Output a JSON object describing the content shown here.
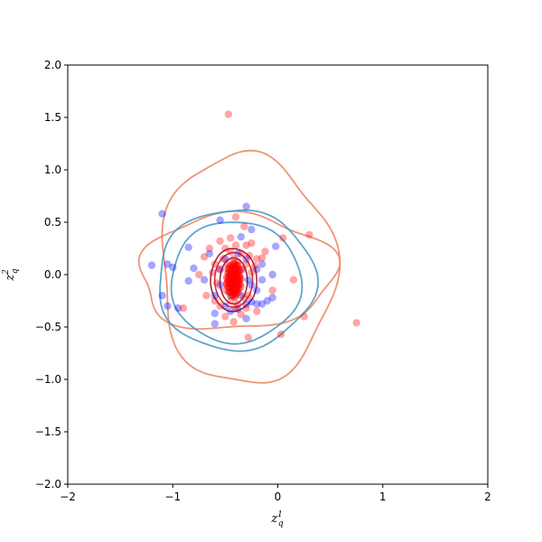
{
  "chart_data": {
    "type": "scatter",
    "title": "",
    "xlabel": {
      "base": "z",
      "sub": "q",
      "sup": "1"
    },
    "ylabel": {
      "base": "z",
      "sub": "q",
      "sup": "2"
    },
    "xlim": [
      -2,
      2
    ],
    "ylim": [
      -2,
      2
    ],
    "xticks": [
      "−2",
      "−1",
      "0",
      "1",
      "2"
    ],
    "yticks": [
      "−2.0",
      "−1.5",
      "−1.0",
      "−0.5",
      "0.0",
      "0.5",
      "1.0",
      "1.5",
      "2.0"
    ],
    "xtick_values": [
      -2,
      -1,
      0,
      1,
      2
    ],
    "ytick_values": [
      -2.0,
      -1.5,
      -1.0,
      -0.5,
      0.0,
      0.5,
      1.0,
      1.5,
      2.0
    ],
    "grid": false,
    "colors": {
      "blue_points": "#0000ff",
      "red_points": "#ff0000",
      "salmon_contour": "#ee8866",
      "steel_contour": "#4e9bc8",
      "dark_red_contour": "#8b0a1e",
      "bright_red_contour": "#dd1111"
    },
    "series": [
      {
        "marker": "circle",
        "color": "#0000ff",
        "alpha": 0.35,
        "points": [
          [
            -1.1,
            0.58
          ],
          [
            -1.2,
            0.09
          ],
          [
            -1.05,
            0.1
          ],
          [
            -1.0,
            0.07
          ],
          [
            -0.85,
            0.26
          ],
          [
            -0.8,
            0.06
          ],
          [
            -0.85,
            -0.06
          ],
          [
            -1.1,
            -0.2
          ],
          [
            -1.05,
            -0.3
          ],
          [
            -0.95,
            -0.32
          ],
          [
            -0.6,
            -0.47
          ],
          [
            -0.6,
            -0.37
          ],
          [
            -0.55,
            0.52
          ],
          [
            -0.3,
            0.65
          ],
          [
            -0.25,
            0.43
          ],
          [
            -0.35,
            0.36
          ],
          [
            -0.02,
            0.27
          ],
          [
            -0.55,
            0.05
          ],
          [
            -0.7,
            -0.05
          ],
          [
            -0.5,
            -0.3
          ],
          [
            -0.45,
            -0.35
          ],
          [
            -0.38,
            -0.33
          ],
          [
            -0.3,
            -0.42
          ],
          [
            -0.3,
            -0.28
          ],
          [
            -0.25,
            -0.26
          ],
          [
            -0.2,
            -0.28
          ],
          [
            -0.15,
            -0.28
          ],
          [
            -0.1,
            -0.25
          ],
          [
            -0.05,
            -0.22
          ],
          [
            -0.15,
            -0.05
          ],
          [
            -0.2,
            0.05
          ],
          [
            -0.15,
            0.1
          ],
          [
            -0.05,
            0.0
          ],
          [
            -0.65,
            0.2
          ],
          [
            -0.6,
            -0.2
          ],
          [
            -0.35,
            0.05
          ],
          [
            -0.3,
            0.15
          ],
          [
            -0.25,
            -0.1
          ],
          [
            -0.38,
            0.2
          ],
          [
            -0.5,
            0.15
          ],
          [
            -0.45,
            -0.2
          ],
          [
            -0.35,
            -0.2
          ],
          [
            -0.28,
            -0.05
          ],
          [
            -0.2,
            -0.15
          ],
          [
            -0.55,
            -0.1
          ]
        ]
      },
      {
        "marker": "circle",
        "color": "#ff0000",
        "alpha": 0.35,
        "points": [
          [
            -0.47,
            1.53
          ],
          [
            0.75,
            -0.46
          ],
          [
            0.3,
            0.38
          ],
          [
            0.05,
            0.35
          ],
          [
            0.25,
            -0.4
          ],
          [
            0.03,
            -0.57
          ],
          [
            -0.28,
            -0.6
          ],
          [
            -0.9,
            -0.32
          ],
          [
            -0.32,
            0.46
          ],
          [
            -0.4,
            0.55
          ],
          [
            -0.45,
            0.35
          ],
          [
            -0.55,
            0.32
          ],
          [
            -0.65,
            0.25
          ],
          [
            -0.7,
            0.17
          ],
          [
            -0.75,
            0.0
          ],
          [
            -0.68,
            -0.2
          ],
          [
            -0.6,
            -0.25
          ],
          [
            -0.5,
            -0.4
          ],
          [
            -0.42,
            -0.45
          ],
          [
            -0.35,
            -0.38
          ],
          [
            -0.2,
            0.15
          ],
          [
            -0.15,
            0.16
          ],
          [
            -0.05,
            -0.15
          ],
          [
            0.15,
            -0.05
          ],
          [
            -0.25,
            0.3
          ],
          [
            -0.3,
            0.28
          ],
          [
            -0.2,
            -0.35
          ],
          [
            -0.12,
            0.22
          ],
          [
            -0.6,
            0.1
          ],
          [
            -0.55,
            0.05
          ],
          [
            -0.52,
            0.15
          ],
          [
            -0.5,
            0.25
          ],
          [
            -0.48,
            0.1
          ],
          [
            -0.45,
            0.22
          ],
          [
            -0.42,
            0.15
          ],
          [
            -0.4,
            0.28
          ],
          [
            -0.38,
            0.12
          ],
          [
            -0.35,
            0.2
          ],
          [
            -0.33,
            0.05
          ],
          [
            -0.3,
            0.1
          ],
          [
            -0.35,
            -0.12
          ],
          [
            -0.32,
            -0.22
          ],
          [
            -0.38,
            -0.28
          ],
          [
            -0.28,
            -0.2
          ],
          [
            -0.25,
            0.02
          ],
          [
            -0.5,
            -0.15
          ],
          [
            -0.55,
            -0.3
          ],
          [
            -0.62,
            0.02
          ],
          [
            -0.58,
            -0.08
          ],
          [
            -0.45,
            -0.25
          ],
          [
            -0.4,
            -0.32
          ],
          [
            -0.3,
            -0.32
          ],
          [
            -0.27,
            0.18
          ],
          [
            -0.22,
            0.08
          ]
        ],
        "core": {
          "cx": -0.42,
          "cy": -0.05,
          "rx": 0.07,
          "ry": 0.17,
          "n": 60
        }
      }
    ],
    "contours": [
      {
        "color": "#ee8866",
        "width": 1.8,
        "cx": -0.4,
        "cy": 0.02,
        "rx": 0.93,
        "ry": 0.55,
        "wobble": 0.06,
        "skew": 0.12
      },
      {
        "color": "#ee8866",
        "width": 1.8,
        "cx": -0.3,
        "cy": 0.05,
        "rx": 0.83,
        "ry": 1.1,
        "wobble": 0.05,
        "skew": -0.05
      },
      {
        "color": "#4e9bc8",
        "width": 1.8,
        "cx": -0.4,
        "cy": -0.05,
        "rx": 0.75,
        "ry": 0.67,
        "wobble": 0.03,
        "skew": 0.02
      },
      {
        "color": "#4e9bc8",
        "width": 1.8,
        "cx": -0.4,
        "cy": -0.07,
        "rx": 0.62,
        "ry": 0.58,
        "wobble": 0.02,
        "skew": 0.0
      },
      {
        "color": "#8b0a1e",
        "width": 1.5,
        "cx": -0.42,
        "cy": -0.05,
        "rx": 0.22,
        "ry": 0.3,
        "wobble": 0.01,
        "skew": 0.0
      },
      {
        "color": "#dd1111",
        "width": 1.5,
        "cx": -0.42,
        "cy": -0.05,
        "rx": 0.18,
        "ry": 0.26,
        "wobble": 0.0,
        "skew": 0.0
      },
      {
        "color": "#8b0a1e",
        "width": 1.5,
        "cx": -0.42,
        "cy": -0.06,
        "rx": 0.13,
        "ry": 0.22,
        "wobble": 0.0,
        "skew": 0.0
      }
    ]
  }
}
